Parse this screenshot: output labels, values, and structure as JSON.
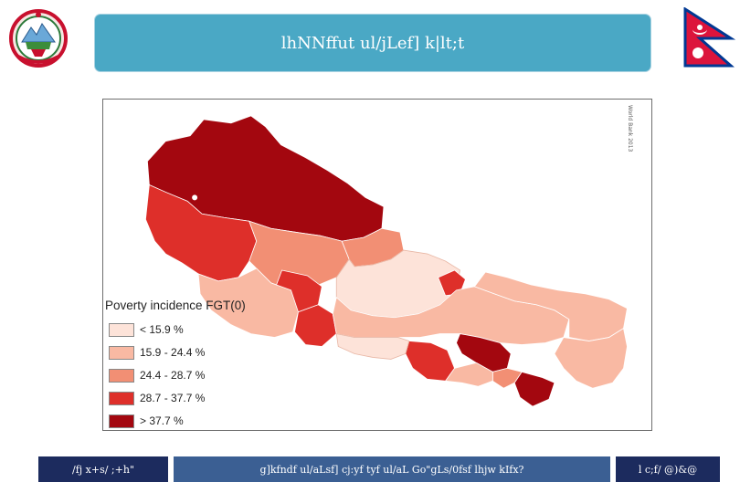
{
  "header": {
    "title": "lhNNffut ul/jLef] k|lt;t"
  },
  "icons": {
    "emblem": "nepal-emblem-icon",
    "flag": "nepal-flag-icon"
  },
  "map": {
    "credit": "World Bank 2013",
    "legend": {
      "title": "Poverty incidence FGT(0)",
      "classes": [
        {
          "label": "< 15.9 %",
          "color": "#fde3d9"
        },
        {
          "label": "15.9 - 24.4 %",
          "color": "#f9b9a3"
        },
        {
          "label": "24.4 - 28.7 %",
          "color": "#f28f74"
        },
        {
          "label": "28.7 - 37.7 %",
          "color": "#de2f2a"
        },
        {
          "label": "> 37.7 %",
          "color": "#a3070f"
        }
      ]
    }
  },
  "footer": {
    "left": "/fj x+s/ ;+h\"",
    "middle": "g]kfndf ul/aLsf] cj:yf tyf ul/aL Go\"gLs/0fsf lhjw kIfx?",
    "right": "l c;f/ @)&@"
  }
}
